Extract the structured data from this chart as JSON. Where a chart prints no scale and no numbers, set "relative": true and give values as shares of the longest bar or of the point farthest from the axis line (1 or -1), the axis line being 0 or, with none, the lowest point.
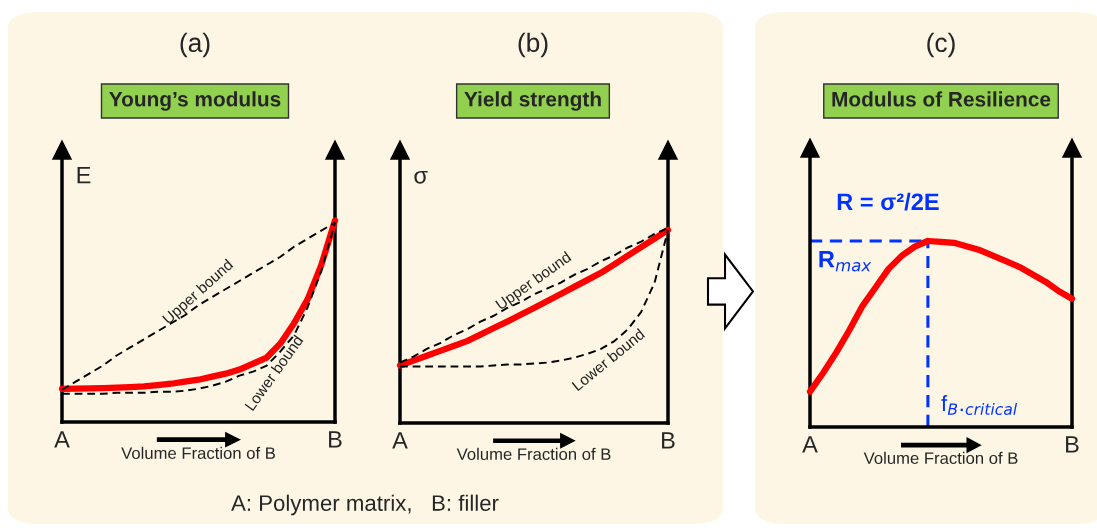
{
  "chart_data": [
    {
      "type": "line",
      "title": "(a)",
      "subtitle": "Young’s modulus",
      "xlabel": "Volume Fraction of B",
      "ylabel": "E",
      "relative": true,
      "grid": false,
      "legend": false,
      "categories": [
        "A",
        null,
        null,
        null,
        null,
        null,
        null,
        null,
        null,
        null,
        null,
        null,
        null,
        null,
        null,
        null,
        null,
        null,
        null,
        null,
        "B"
      ],
      "annotations": [
        "A: Polymer matrix,   B: filler"
      ],
      "series": [
        {
          "name": "Upper bound",
          "color": "#000000",
          "line_style": "dashed",
          "values": [
            0.16,
            0.2,
            0.24,
            0.28,
            0.33,
            0.37,
            0.41,
            0.45,
            0.49,
            0.53,
            0.58,
            0.62,
            0.66,
            0.7,
            0.74,
            0.78,
            0.82,
            0.87,
            0.91,
            0.95,
            0.99
          ]
        },
        {
          "name": "Lower bound",
          "color": "#000000",
          "line_style": "dashed",
          "values": [
            0.14,
            0.14,
            0.14,
            0.14,
            0.145,
            0.145,
            0.145,
            0.15,
            0.15,
            0.155,
            0.165,
            0.18,
            0.2,
            0.23,
            0.25,
            0.28,
            0.35,
            0.43,
            0.57,
            0.75,
            0.99
          ]
        },
        {
          "color": "#ff0000",
          "line_style": "solid",
          "values": [
            0.165,
            0.166,
            0.167,
            0.168,
            0.17,
            0.173,
            0.177,
            0.183,
            0.19,
            0.2,
            0.21,
            0.225,
            0.24,
            0.26,
            0.29,
            0.32,
            0.39,
            0.49,
            0.61,
            0.78,
            1.0
          ]
        }
      ]
    },
    {
      "type": "line",
      "title": "(b)",
      "subtitle": "Yield strength",
      "xlabel": "Volume Fraction of B",
      "ylabel": "σ",
      "relative": true,
      "grid": false,
      "legend": false,
      "categories": [
        "A",
        null,
        null,
        null,
        null,
        null,
        null,
        null,
        null,
        null,
        null,
        null,
        null,
        null,
        null,
        null,
        null,
        null,
        null,
        null,
        "B"
      ],
      "series": [
        {
          "name": "Upper bound",
          "color": "#000000",
          "line_style": "dashed",
          "values": [
            0.31,
            0.34,
            0.38,
            0.41,
            0.45,
            0.48,
            0.52,
            0.55,
            0.59,
            0.62,
            0.66,
            0.69,
            0.72,
            0.76,
            0.79,
            0.83,
            0.86,
            0.9,
            0.93,
            0.97,
            1.0
          ]
        },
        {
          "name": "Lower bound",
          "color": "#000000",
          "line_style": "dashed",
          "values": [
            0.29,
            0.29,
            0.29,
            0.29,
            0.29,
            0.29,
            0.29,
            0.295,
            0.3,
            0.3,
            0.305,
            0.31,
            0.32,
            0.335,
            0.355,
            0.38,
            0.42,
            0.48,
            0.57,
            0.72,
            0.99
          ]
        },
        {
          "color": "#ff0000",
          "line_style": "solid",
          "values": [
            0.295,
            0.32,
            0.345,
            0.37,
            0.395,
            0.42,
            0.453,
            0.487,
            0.52,
            0.555,
            0.59,
            0.626,
            0.662,
            0.698,
            0.734,
            0.77,
            0.814,
            0.858,
            0.902,
            0.946,
            0.99
          ]
        }
      ]
    },
    {
      "type": "line",
      "title": "(c)",
      "subtitle": "Modulus of Resilience",
      "xlabel": "Volume Fraction of B",
      "relative": true,
      "grid": false,
      "legend": false,
      "categories": [
        "A",
        null,
        null,
        null,
        null,
        null,
        null,
        null,
        null,
        null,
        null,
        null,
        null,
        null,
        null,
        null,
        null,
        null,
        null,
        null,
        "B"
      ],
      "annotations": [
        "R = σ²/2E",
        "f$_{B}$.$_{critical}$"
      ],
      "ref_lines": [
        {
          "axis": "y",
          "value": 1.0,
          "label": "R$_{max}$",
          "color": "#0033ff",
          "line_style": "dashed"
        }
      ],
      "series": [
        {
          "color": "#ff0000",
          "line_style": "solid",
          "values": [
            0.19,
            0.29,
            0.4,
            0.52,
            0.65,
            0.75,
            0.85,
            0.92,
            0.97,
            1.0,
            0.995,
            0.99,
            0.97,
            0.95,
            0.92,
            0.89,
            0.86,
            0.82,
            0.78,
            0.73,
            0.69
          ]
        }
      ]
    }
  ]
}
